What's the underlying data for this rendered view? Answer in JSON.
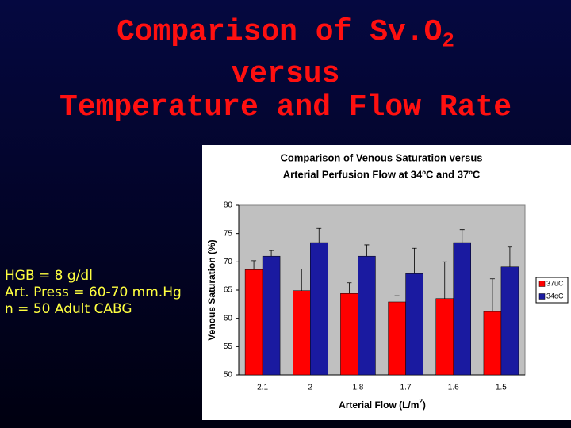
{
  "slide": {
    "title": {
      "line1": "Comparison of Sv.O",
      "line1_sub": "2",
      "line2": "versus",
      "line3": "Temperature and Flow Rate"
    },
    "notes": [
      "HGB = 8 g/dl",
      "Art. Press = 60-70 mm.Hg",
      "n = 50 Adult CABG"
    ]
  },
  "chart_data": {
    "type": "bar",
    "title": [
      "Comparison of Venous Saturation versus",
      "Arterial Perfusion Flow at 34ºC and 37ºC"
    ],
    "y_label": "Venous Saturation (%)",
    "x_label": "Arterial Flow (L/m",
    "x_label_sup": "2",
    "x_label_end": ")",
    "categories": [
      "2.1",
      "2",
      "1.8",
      "1.7",
      "1.6",
      "1.5"
    ],
    "series": [
      {
        "name": "37uC",
        "color": "#ff0000",
        "values": [
          68.6,
          64.9,
          64.4,
          62.9,
          63.5,
          61.2
        ],
        "errors": [
          1.6,
          3.8,
          1.9,
          1.1,
          6.5,
          5.8
        ]
      },
      {
        "name": "34oC",
        "color": "#1a1aa0",
        "values": [
          71.0,
          73.4,
          71.0,
          67.9,
          73.4,
          69.1
        ],
        "errors": [
          1.0,
          2.5,
          2.0,
          4.5,
          2.3,
          3.5
        ]
      }
    ],
    "ylim": [
      50,
      80
    ],
    "yticks": [
      50,
      55,
      60,
      65,
      70,
      75,
      80
    ],
    "grid": false,
    "legend": "right"
  }
}
